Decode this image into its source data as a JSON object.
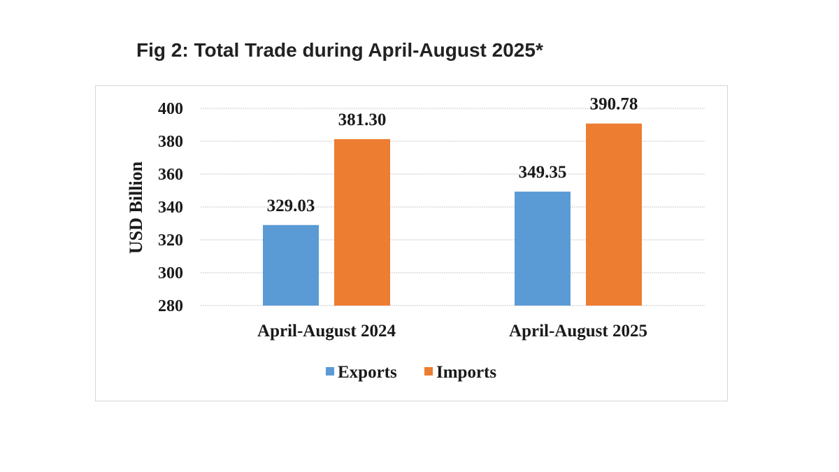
{
  "figure_title": "Fig 2: Total Trade during April-August 2025*",
  "chart_data": {
    "type": "bar",
    "categories": [
      "April-August 2024",
      "April-August 2025"
    ],
    "series": [
      {
        "name": "Exports",
        "values": [
          329.03,
          349.35
        ],
        "color": "#5b9bd5"
      },
      {
        "name": "Imports",
        "values": [
          381.3,
          390.78
        ],
        "color": "#ed7d31"
      }
    ],
    "data_labels": [
      [
        "329.03",
        "349.35"
      ],
      [
        "381.30",
        "390.78"
      ]
    ],
    "ylabel": "USD Billion",
    "xlabel": "",
    "ylim": [
      280,
      400
    ],
    "yticks": [
      280,
      300,
      320,
      340,
      360,
      380,
      400
    ],
    "grid": true,
    "legend_position": "bottom-center"
  }
}
